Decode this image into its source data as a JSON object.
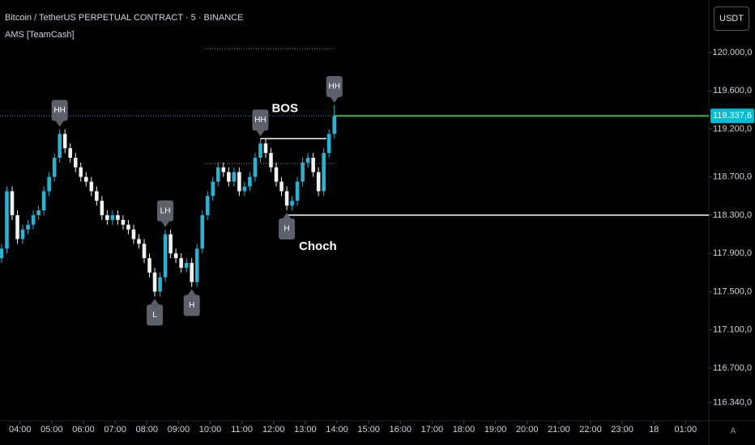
{
  "header": {
    "symbol": "Bitcoin / TetherUS PERPETUAL CONTRACT · 5 · BINANCE",
    "indicator": "AMS [TeamCash]",
    "currency": "USDT",
    "scale_mode": "A"
  },
  "chart_data": {
    "type": "candlestick",
    "x": [
      205,
      215,
      225,
      235,
      245,
      255,
      265,
      275,
      285,
      295,
      305,
      315,
      325,
      335,
      345,
      355,
      365,
      375,
      385,
      395,
      405,
      415,
      425,
      435,
      445,
      455,
      465,
      475,
      485,
      495,
      505,
      515,
      525,
      535,
      545,
      555,
      565,
      575,
      585,
      595,
      605,
      615,
      625,
      635,
      645,
      655,
      665,
      675,
      685,
      695,
      705,
      715,
      725,
      735,
      745,
      755,
      765,
      775,
      785,
      795,
      805,
      815,
      825,
      835
    ],
    "open": [
      117850,
      117950,
      118550,
      118300,
      118050,
      118150,
      118200,
      118300,
      118350,
      118550,
      118700,
      118900,
      119150,
      119000,
      118900,
      118800,
      118700,
      118650,
      118550,
      118450,
      118300,
      118250,
      118300,
      118250,
      118200,
      118150,
      118050,
      118000,
      117850,
      117700,
      117500,
      117650,
      118100,
      117900,
      117850,
      117750,
      117800,
      117600,
      117950,
      118300,
      118500,
      118650,
      118800,
      118750,
      118650,
      118750,
      118550,
      118600,
      118700,
      118900,
      119050,
      118950,
      118800,
      118650,
      118550,
      118400,
      118450,
      118650,
      118850,
      118900,
      118750,
      118550,
      118950,
      119150
    ],
    "high": [
      118000,
      118600,
      118600,
      118350,
      118200,
      118250,
      118350,
      118400,
      118600,
      118750,
      118950,
      119200,
      119200,
      119050,
      118950,
      118850,
      118750,
      118700,
      118600,
      118500,
      118350,
      118350,
      118350,
      118300,
      118250,
      118200,
      118100,
      118050,
      117900,
      117750,
      117700,
      118150,
      118150,
      117950,
      117900,
      117850,
      117850,
      118000,
      118350,
      118550,
      118700,
      118850,
      118850,
      118800,
      118800,
      118800,
      118650,
      118750,
      118950,
      119100,
      119100,
      119000,
      118850,
      118700,
      118600,
      118500,
      118700,
      118900,
      118950,
      118950,
      118800,
      119000,
      119200,
      119450
    ],
    "low": [
      117800,
      117900,
      118250,
      118000,
      118000,
      118100,
      118150,
      118250,
      118300,
      118500,
      118650,
      118850,
      118950,
      118850,
      118750,
      118650,
      118600,
      118500,
      118400,
      118250,
      118200,
      118200,
      118200,
      118150,
      118100,
      118000,
      117950,
      117800,
      117650,
      117450,
      117450,
      117600,
      117850,
      117800,
      117700,
      117700,
      117550,
      117550,
      117900,
      118250,
      118450,
      118600,
      118700,
      118600,
      118600,
      118500,
      118500,
      118550,
      118650,
      118850,
      118900,
      118750,
      118600,
      118500,
      118350,
      118350,
      118400,
      118600,
      118800,
      118700,
      118500,
      118500,
      118900,
      119100
    ],
    "close": [
      117950,
      118550,
      118300,
      118050,
      118150,
      118200,
      118300,
      118350,
      118550,
      118700,
      118900,
      119150,
      119000,
      118900,
      118800,
      118700,
      118650,
      118550,
      118450,
      118300,
      118250,
      118300,
      118250,
      118200,
      118150,
      118050,
      118000,
      117850,
      117700,
      117500,
      117650,
      118100,
      117900,
      117850,
      117750,
      117800,
      117600,
      117950,
      118300,
      118500,
      118650,
      118800,
      118750,
      118650,
      118750,
      118550,
      118600,
      118700,
      118900,
      119050,
      118950,
      118800,
      118650,
      118550,
      118400,
      118450,
      118650,
      118850,
      118900,
      118750,
      118550,
      118950,
      119150,
      119337.6
    ],
    "colors": {
      "up": "#22b5d4",
      "down": "#f2f2f2",
      "last_price": "#4caf50",
      "tag": "#00bcd4"
    },
    "xlim": [
      202,
      1544
    ],
    "ylim": [
      116150,
      120550
    ],
    "xticks": [
      {
        "value": 240,
        "label": "04:00"
      },
      {
        "value": 300,
        "label": "05:00"
      },
      {
        "value": 360,
        "label": "06:00"
      },
      {
        "value": 420,
        "label": "07:00"
      },
      {
        "value": 480,
        "label": "08:00"
      },
      {
        "value": 540,
        "label": "09:00"
      },
      {
        "value": 600,
        "label": "10:00"
      },
      {
        "value": 660,
        "label": "11:00"
      },
      {
        "value": 720,
        "label": "12:00"
      },
      {
        "value": 780,
        "label": "13:00"
      },
      {
        "value": 840,
        "label": "14:00"
      },
      {
        "value": 900,
        "label": "15:00"
      },
      {
        "value": 960,
        "label": "16:00"
      },
      {
        "value": 1020,
        "label": "17:00"
      },
      {
        "value": 1080,
        "label": "18:00"
      },
      {
        "value": 1140,
        "label": "19:00"
      },
      {
        "value": 1200,
        "label": "20:00"
      },
      {
        "value": 1260,
        "label": "21:00"
      },
      {
        "value": 1320,
        "label": "22:00"
      },
      {
        "value": 1380,
        "label": "23:00"
      },
      {
        "value": 1440,
        "label": "18"
      },
      {
        "value": 1500,
        "label": "01:00"
      }
    ],
    "yticks": [
      {
        "value": 120000,
        "label": "120.000,0"
      },
      {
        "value": 119600,
        "label": "119.600,0"
      },
      {
        "value": 119200,
        "label": "119.200,0"
      },
      {
        "value": 118700,
        "label": "118.700,0"
      },
      {
        "value": 118300,
        "label": "118.300,0"
      },
      {
        "value": 117900,
        "label": "117.900,0"
      },
      {
        "value": 117500,
        "label": "117.500,0"
      },
      {
        "value": 117100,
        "label": "117.100,0"
      },
      {
        "value": 116700,
        "label": "116.700,0"
      },
      {
        "value": 116340,
        "label": "116.340,0"
      }
    ],
    "last_price": {
      "value": 119337.6,
      "label": "119.337,6"
    },
    "annotations": [
      {
        "text": "HH",
        "x": 315,
        "y": 119200,
        "placement": "above"
      },
      {
        "text": "L",
        "x": 495,
        "y": 117450,
        "placement": "below"
      },
      {
        "text": "LH",
        "x": 515,
        "y": 118150,
        "placement": "above"
      },
      {
        "text": "H",
        "x": 565,
        "y": 117550,
        "placement": "below"
      },
      {
        "text": "HH",
        "x": 695,
        "y": 119100,
        "placement": "above"
      },
      {
        "text": "H",
        "x": 745,
        "y": 118350,
        "placement": "below"
      },
      {
        "text": "HH",
        "x": 835,
        "y": 119450,
        "placement": "above"
      }
    ],
    "bos": {
      "label": "BOS",
      "value": 119100,
      "x": [
        695,
        820
      ]
    },
    "choch": {
      "label": "Choch",
      "value": 118300,
      "x": [
        745,
        1544
      ]
    },
    "dotted_levels": {
      "values": [
        120040,
        118840
      ],
      "x": [
        590,
        835
      ]
    }
  }
}
